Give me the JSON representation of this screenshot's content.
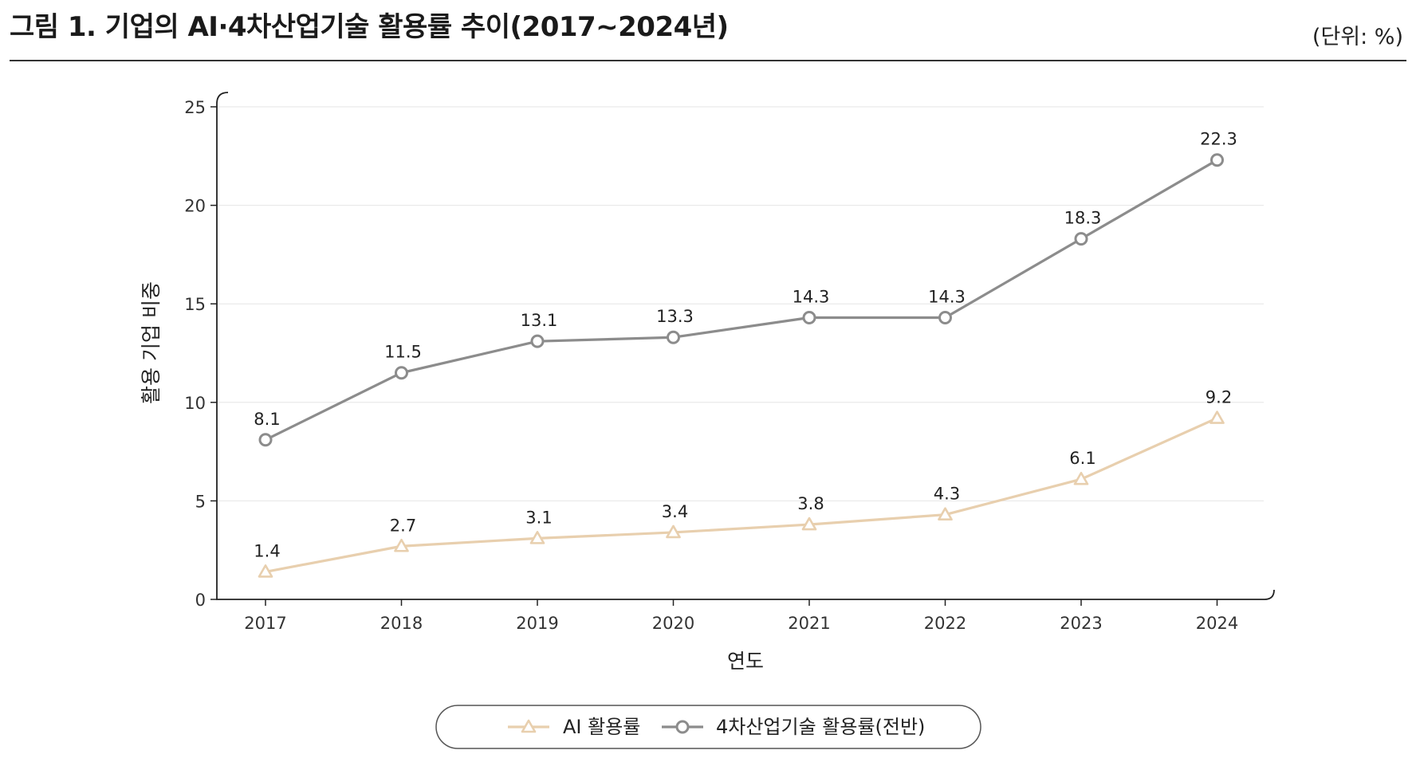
{
  "figure": {
    "title": "그림 1. 기업의 AI·4차산업기술 활용률 추이(2017~2024년)",
    "unit": "(단위: %)"
  },
  "chart_data": {
    "type": "line",
    "categories": [
      "2017",
      "2018",
      "2019",
      "2020",
      "2021",
      "2022",
      "2023",
      "2024"
    ],
    "series": [
      {
        "name": "AI 활용률",
        "values": [
          1.4,
          2.7,
          3.1,
          3.4,
          3.8,
          4.3,
          6.1,
          9.2
        ],
        "labels": [
          "1.4",
          "2.7",
          "3.1",
          "3.4",
          "3.8",
          "4.3",
          "6.1",
          "9.2"
        ],
        "color": "#e8cfae",
        "marker": "triangle"
      },
      {
        "name": "4차산업기술 활용률(전반)",
        "values": [
          8.1,
          11.5,
          13.1,
          13.3,
          14.3,
          14.3,
          18.3,
          22.3
        ],
        "labels": [
          "8.1",
          "11.5",
          "13.1",
          "13.3",
          "14.3",
          "14.3",
          "18.3",
          "22.3"
        ],
        "color": "#8c8c8c",
        "marker": "circle"
      }
    ],
    "xlabel": "연도",
    "ylabel": "활용 기업 비중",
    "ylim": [
      0,
      25
    ],
    "yticks": [
      "0",
      "5",
      "10",
      "15",
      "20",
      "25"
    ],
    "grid": true,
    "legend_position": "bottom"
  }
}
